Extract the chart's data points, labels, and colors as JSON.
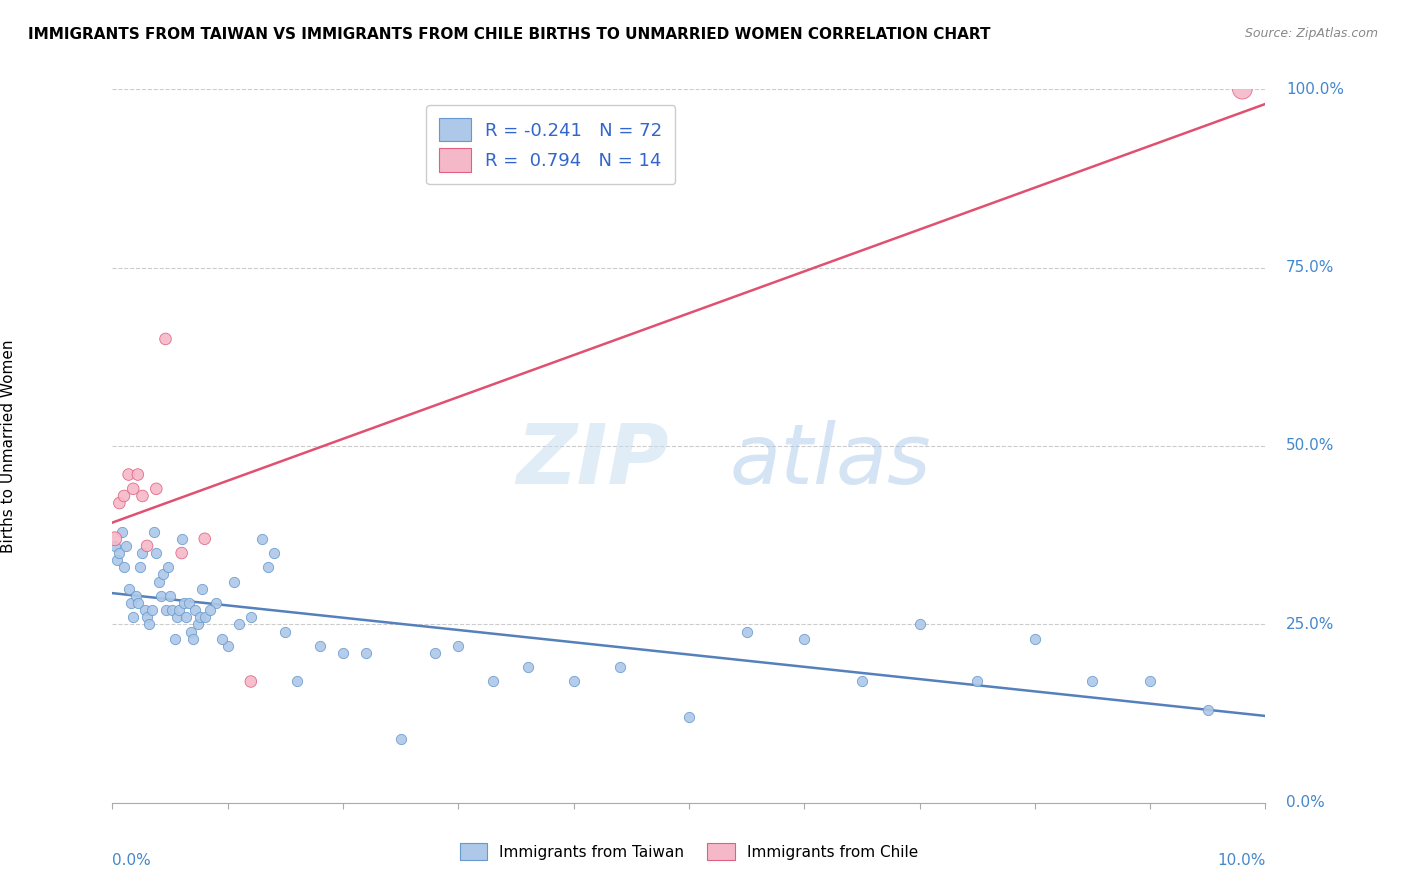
{
  "title": "IMMIGRANTS FROM TAIWAN VS IMMIGRANTS FROM CHILE BIRTHS TO UNMARRIED WOMEN CORRELATION CHART",
  "source": "Source: ZipAtlas.com",
  "ylabel": "Births to Unmarried Women",
  "ytick_vals": [
    0,
    25,
    50,
    75,
    100
  ],
  "ytick_labels": [
    "0.0%",
    "25.0%",
    "50.0%",
    "75.0%",
    "100.0%"
  ],
  "legend_taiwan": "R = -0.241   N = 72",
  "legend_chile": "R =  0.794   N = 14",
  "legend_bottom_taiwan": "Immigrants from Taiwan",
  "legend_bottom_chile": "Immigrants from Chile",
  "taiwan_fill": "#adc8e8",
  "taiwan_edge": "#6699cc",
  "chile_fill": "#f5b8c8",
  "chile_edge": "#e06080",
  "taiwan_line_color": "#5580bb",
  "chile_line_color": "#e05070",
  "watermark_zip": "ZIP",
  "watermark_atlas": "atlas",
  "xmin": 0.0,
  "xmax": 10.0,
  "ymin": 0.0,
  "ymax": 100.0,
  "taiwan_x": [
    0.02,
    0.04,
    0.06,
    0.08,
    0.1,
    0.12,
    0.14,
    0.16,
    0.18,
    0.2,
    0.22,
    0.24,
    0.26,
    0.28,
    0.3,
    0.32,
    0.34,
    0.36,
    0.38,
    0.4,
    0.42,
    0.44,
    0.46,
    0.48,
    0.5,
    0.52,
    0.54,
    0.56,
    0.58,
    0.6,
    0.62,
    0.64,
    0.66,
    0.68,
    0.7,
    0.72,
    0.74,
    0.76,
    0.78,
    0.8,
    0.9,
    1.0,
    1.1,
    1.2,
    1.3,
    1.4,
    1.5,
    1.6,
    1.8,
    2.0,
    2.2,
    2.5,
    2.8,
    3.0,
    3.3,
    3.6,
    4.0,
    4.4,
    5.0,
    5.5,
    6.0,
    6.5,
    7.0,
    7.5,
    8.0,
    8.5,
    9.0,
    9.5,
    1.05,
    1.35,
    0.85,
    0.95
  ],
  "taiwan_y": [
    36,
    34,
    35,
    38,
    33,
    36,
    30,
    28,
    26,
    29,
    28,
    33,
    35,
    27,
    26,
    25,
    27,
    38,
    35,
    31,
    29,
    32,
    27,
    33,
    29,
    27,
    23,
    26,
    27,
    37,
    28,
    26,
    28,
    24,
    23,
    27,
    25,
    26,
    30,
    26,
    28,
    22,
    25,
    26,
    37,
    35,
    24,
    17,
    22,
    21,
    21,
    9,
    21,
    22,
    17,
    19,
    17,
    19,
    12,
    24,
    23,
    17,
    25,
    17,
    23,
    17,
    17,
    13,
    31,
    33,
    27,
    23
  ],
  "chile_x": [
    0.02,
    0.06,
    0.1,
    0.14,
    0.18,
    0.22,
    0.26,
    0.3,
    0.38,
    0.46,
    0.6,
    0.8,
    1.2,
    9.8
  ],
  "chile_y": [
    37,
    42,
    43,
    46,
    44,
    46,
    43,
    36,
    44,
    65,
    35,
    37,
    17,
    100
  ],
  "chile_sizes": [
    100,
    70,
    70,
    70,
    70,
    70,
    70,
    70,
    70,
    70,
    70,
    70,
    70,
    200
  ]
}
